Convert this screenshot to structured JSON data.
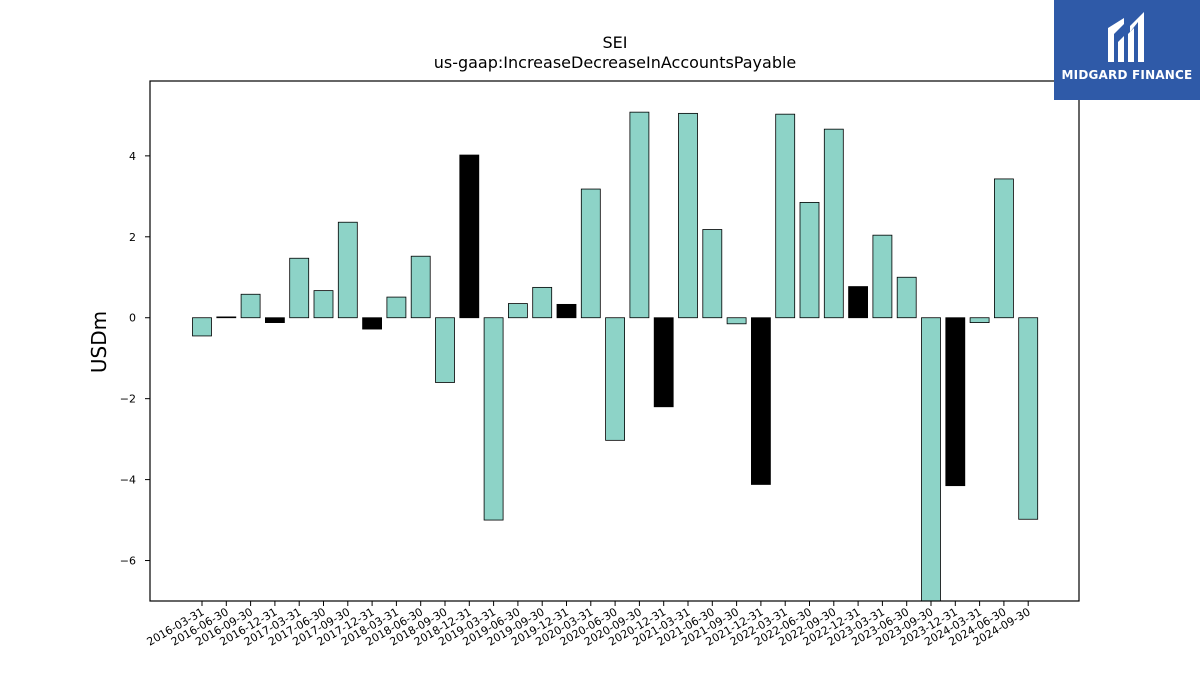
{
  "brand": {
    "name": "MIDGARD FINANCE",
    "bg_color": "#2f5aa8",
    "mark_icon": "midgard-logo-icon"
  },
  "chart_data": {
    "type": "bar",
    "title": "SEI",
    "subtitle": "us-gaap:IncreaseDecreaseInAccountsPayable",
    "ylabel": "USDm",
    "ylim": [
      -7.0,
      5.85
    ],
    "yticks": [
      -6,
      -4,
      -2,
      0,
      2,
      4
    ],
    "grid": false,
    "colors": {
      "positive_series": "#8dd3c7",
      "highlight": "#000000",
      "edge": "#000000"
    },
    "categories": [
      "2016-03-31",
      "2016-06-30",
      "2016-09-30",
      "2016-12-31",
      "2017-03-31",
      "2017-06-30",
      "2017-09-30",
      "2017-12-31",
      "2018-03-31",
      "2018-06-30",
      "2018-09-30",
      "2018-12-31",
      "2019-03-31",
      "2019-06-30",
      "2019-09-30",
      "2019-12-31",
      "2020-03-31",
      "2020-06-30",
      "2020-09-30",
      "2020-12-31",
      "2021-03-31",
      "2021-06-30",
      "2021-09-30",
      "2021-12-31",
      "2022-03-31",
      "2022-06-30",
      "2022-09-30",
      "2022-12-31",
      "2023-03-31",
      "2023-06-30",
      "2023-09-30",
      "2023-12-31",
      "2024-03-31",
      "2024-06-30",
      "2024-09-30"
    ],
    "values": [
      -0.45,
      0.02,
      0.58,
      -0.12,
      1.47,
      0.67,
      2.36,
      -0.28,
      0.51,
      1.52,
      -1.6,
      4.02,
      -5.0,
      0.35,
      0.75,
      0.33,
      3.18,
      -3.03,
      5.08,
      -2.2,
      5.05,
      2.18,
      -0.15,
      -4.12,
      5.03,
      2.85,
      4.66,
      0.77,
      2.04,
      1.0,
      -7.2,
      -4.15,
      -0.12,
      3.43,
      -4.98
    ],
    "bar_colors": [
      "#8dd3c7",
      "#000000",
      "#8dd3c7",
      "#000000",
      "#8dd3c7",
      "#8dd3c7",
      "#8dd3c7",
      "#000000",
      "#8dd3c7",
      "#8dd3c7",
      "#8dd3c7",
      "#000000",
      "#8dd3c7",
      "#8dd3c7",
      "#8dd3c7",
      "#000000",
      "#8dd3c7",
      "#8dd3c7",
      "#8dd3c7",
      "#000000",
      "#8dd3c7",
      "#8dd3c7",
      "#8dd3c7",
      "#000000",
      "#8dd3c7",
      "#8dd3c7",
      "#8dd3c7",
      "#000000",
      "#8dd3c7",
      "#8dd3c7",
      "#8dd3c7",
      "#000000",
      "#8dd3c7",
      "#8dd3c7",
      "#8dd3c7"
    ]
  }
}
